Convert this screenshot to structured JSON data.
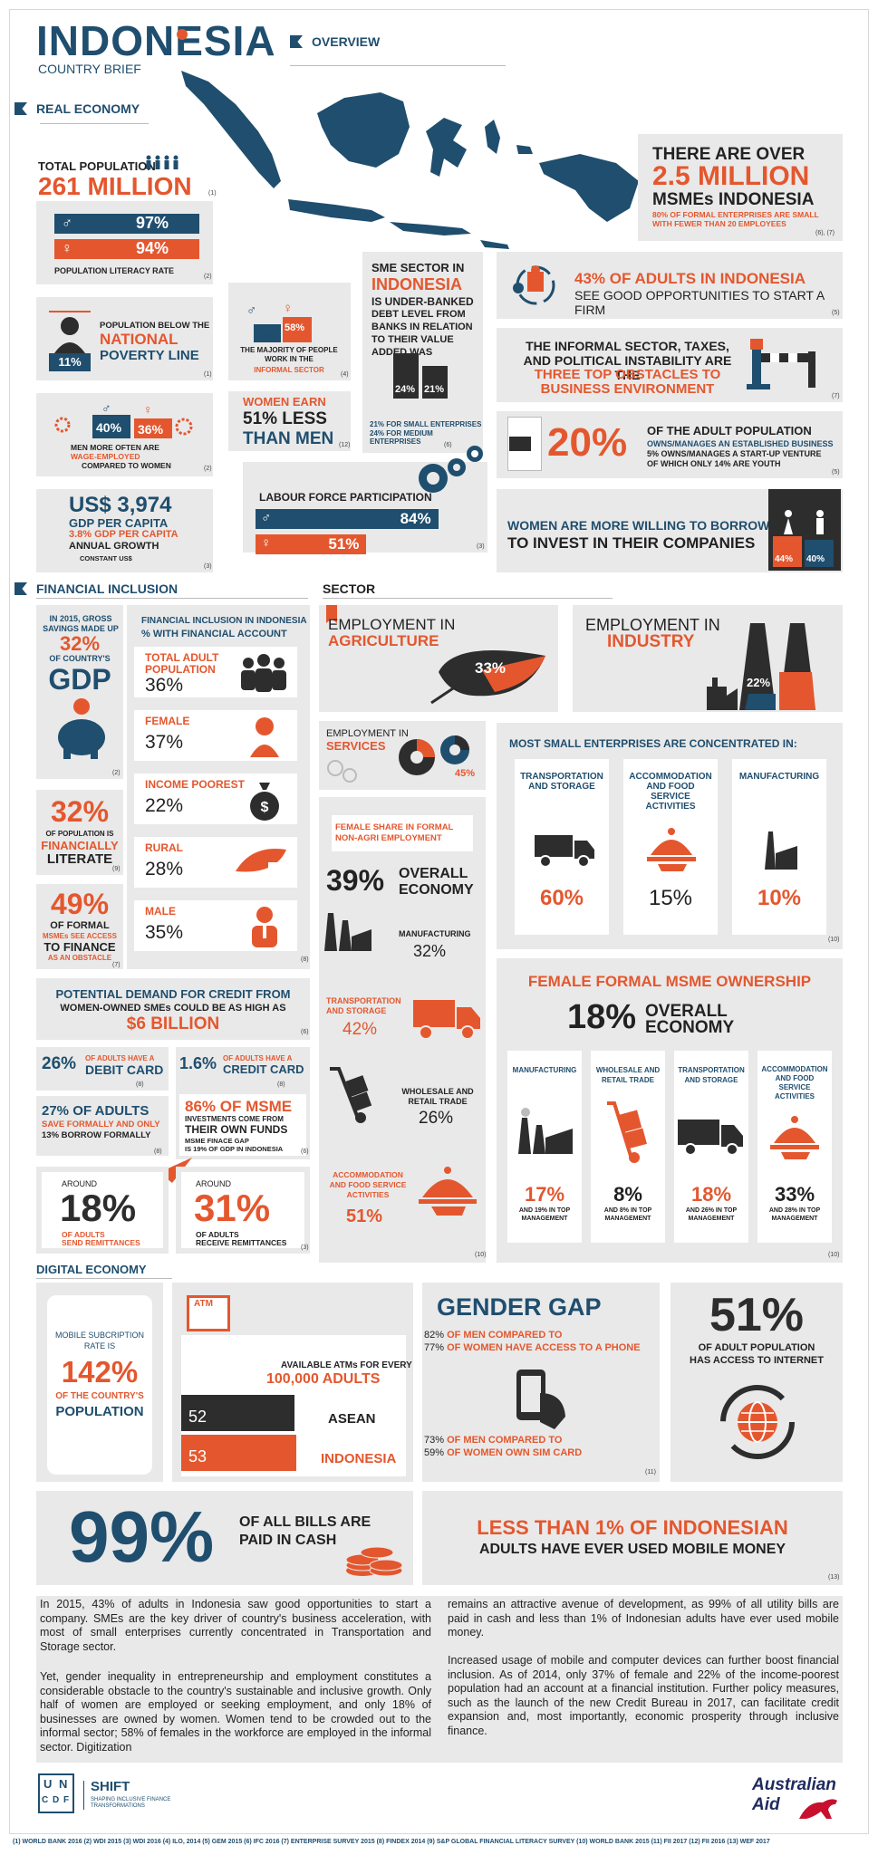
{
  "header": {
    "title": "INDONESIA",
    "subtitle": "COUNTRY BRIEF",
    "overview": "OVERVIEW",
    "real_economy": "REAL ECONOMY"
  },
  "population": {
    "label": "TOTAL POPULATION",
    "value": "261 MILLION",
    "ref": "(1)"
  },
  "literacy": {
    "male": "97%",
    "female": "94%",
    "label": "POPULATION LITERACY RATE",
    "ref": "(2)"
  },
  "poverty": {
    "text1": "POPULATION BELOW THE",
    "text2": "NATIONAL",
    "text3": "POVERTY LINE",
    "value": "11%",
    "ref": "(1)"
  },
  "informal": {
    "male": "51%",
    "female": "58%",
    "text": "THE MAJORITY OF PEOPLE WORK IN THE",
    "text2": "INFORMAL SECTOR",
    "ref": "(4)"
  },
  "wage": {
    "male": "40%",
    "female": "36%",
    "t1": "MEN MORE OFTEN ARE",
    "t2": "WAGE-EMPLOYED",
    "t3": "COMPARED TO WOMEN",
    "ref": "(2)"
  },
  "women_earn": {
    "t1": "WOMEN EARN",
    "t2": "51% LESS",
    "t3": "THAN MEN",
    "ref": "(12)"
  },
  "gdp": {
    "t1": "US$ 3,974",
    "t2": "GDP PER CAPITA",
    "t3": "3.8% GDP PER CAPITA",
    "t4": "ANNUAL GROWTH",
    "t5": "CONSTANT US$",
    "ref": "(3)"
  },
  "labour": {
    "label": "LABOUR FORCE PARTICIPATION",
    "male": "84%",
    "female": "51%",
    "male_pct": 84,
    "female_pct": 51,
    "ref": "(3)"
  },
  "sme": {
    "t1": "SME SECTOR IN",
    "t2": "INDONESIA",
    "t3": "IS UNDER-BANKED",
    "t4": "DEBT LEVEL FROM BANKS IN RELATION TO THEIR VALUE ADDED WAS",
    "v1": "24%",
    "v2": "21%",
    "n1": "21% FOR SMALL ENTERPRISES",
    "n2": "24% FOR MEDIUM ENTERPRISES",
    "ref": "(6)"
  },
  "msme": {
    "t1": "THERE ARE OVER",
    "t2": "2.5 MILLION",
    "t3": "MSMEs INDONESIA",
    "t4": "80% OF FORMAL ENTERPRISES ARE SMALL WITH FEWER THAN 20 EMPLOYEES",
    "ref": "(6), (7)"
  },
  "adults_firm": {
    "t1": "43% OF ADULTS IN INDONESIA",
    "t2": "SEE GOOD OPPORTUNITIES TO START A FIRM",
    "ref": "(5)"
  },
  "obstacles": {
    "t1": "THE INFORMAL SECTOR, TAXES, AND POLITICAL INSTABILITY ARE THE",
    "t2": "THREE TOP OBSTACLES TO BUSINESS ENVIRONMENT",
    "ref": "(7)"
  },
  "owners": {
    "v": "20%",
    "t1": "OF THE ADULT POPULATION",
    "t2": "OWNS/MANAGES AN ESTABLISHED BUSINESS",
    "t3": "5% OWNS/MANAGES A START-UP VENTURE OF WHICH ONLY 14% ARE YOUTH",
    "ref": "(5)"
  },
  "borrow": {
    "t1": "WOMEN ARE MORE WILLING TO BORROW",
    "t2": "TO INVEST IN THEIR COMPANIES",
    "f": "44%",
    "m": "40%"
  },
  "fin": {
    "head": "FINANCIAL INCLUSION",
    "savings_t1": "IN 2015, GROSS SAVINGS MADE UP",
    "savings_v": "32%",
    "savings_t2": "OF COUNTRY'S",
    "savings_t3": "GDP",
    "savings_ref": "(2)",
    "acc_title": "FINANCIAL INCLUSION IN INDONESIA",
    "acc_sub": "% WITH FINANCIAL ACCOUNT",
    "rows": [
      {
        "label": "TOTAL ADULT POPULATION",
        "value": "36%"
      },
      {
        "label": "FEMALE",
        "value": "37%"
      },
      {
        "label": "INCOME POOREST",
        "value": "22%"
      },
      {
        "label": "RURAL",
        "value": "28%"
      },
      {
        "label": "MALE",
        "value": "35%"
      }
    ],
    "acc_ref": "(8)",
    "lit_v": "32%",
    "lit_t1": "OF POPULATION IS",
    "lit_t2": "FINANCIALLY",
    "lit_t3": "LITERATE",
    "lit_ref": "(9)",
    "obs_v": "49%",
    "obs_t1": "OF FORMAL",
    "obs_t2": "MSMEs SEE ACCESS",
    "obs_t3": "TO FINANCE",
    "obs_t4": "AS AN OBSTACLE",
    "obs_ref": "(7)"
  },
  "credit": {
    "t1": "POTENTIAL DEMAND FOR CREDIT FROM",
    "t2": "WOMEN-OWNED SMEs COULD BE AS HIGH AS",
    "t3": "$6 BILLION",
    "ref": "(6)",
    "debit_v": "26%",
    "debit_t": "OF ADULTS HAVE A",
    "debit_t2": "DEBIT CARD",
    "debit_ref": "(8)",
    "cc_v": "1.6%",
    "cc_t": "OF ADULTS HAVE A",
    "cc_t2": "CREDIT CARD",
    "cc_ref": "(8)",
    "save_t1": "27% OF ADULTS",
    "save_t2": "SAVE FORMALLY AND ONLY",
    "save_t3": "13% BORROW FORMALLY",
    "save_ref": "(8)",
    "inv_t1": "86% OF MSME",
    "inv_t2": "INVESTMENTS COME FROM",
    "inv_t3": "THEIR OWN FUNDS",
    "inv_t4": "MSME FINACE GAP",
    "inv_t5": "IS 19% OF GDP IN INDONESIA",
    "inv_ref": "(6)",
    "send_a": "AROUND",
    "send_v": "18%",
    "send_t": "OF ADULTS",
    "send_t2": "SEND REMITTANCES",
    "rec_a": "AROUND",
    "rec_v": "31%",
    "rec_t": "OF ADULTS",
    "rec_t2": "RECEIVE REMITTANCES",
    "rem_ref": "(3)"
  },
  "sector": {
    "head": "SECTOR",
    "agri_t1": "EMPLOYMENT IN",
    "agri_t2": "AGRICULTURE",
    "agri_v": "33%",
    "ind_t1": "EMPLOYMENT IN",
    "ind_t2": "INDUSTRY",
    "ind_v": "22%",
    "serv_t1": "EMPLOYMENT IN",
    "serv_t2": "SERVICES",
    "serv_v": "45%"
  },
  "female_share": {
    "t1": "FEMALE SHARE IN FORMAL",
    "t2": "NON-AGRI EMPLOYMENT",
    "v": "39%",
    "v_t": "OVERALL",
    "v_t2": "ECONOMY",
    "items": [
      {
        "label": "MANUFACTURING",
        "value": "32%"
      },
      {
        "label": "TRANSPORTATION AND STORAGE",
        "value": "42%"
      },
      {
        "label": "WHOLESALE AND RETAIL TRADE",
        "value": "26%"
      },
      {
        "label": "ACCOMMODATION AND FOOD SERVICE ACTIVITIES",
        "value": "51%"
      }
    ],
    "ref": "(10)"
  },
  "concentrated": {
    "t": "MOST SMALL ENTERPRISES ARE CONCENTRATED IN:",
    "items": [
      {
        "label": "TRANSPORTATION AND STORAGE",
        "value": "60%"
      },
      {
        "label": "ACCOMMODATION AND FOOD SERVICE ACTIVITIES",
        "value": "15%"
      },
      {
        "label": "MANUFACTURING",
        "value": "10%"
      }
    ],
    "ref": "(10)"
  },
  "ownership": {
    "t": "FEMALE FORMAL MSME OWNERSHIP",
    "v": "18%",
    "v_t": "OVERALL",
    "v_t2": "ECONOMY",
    "items": [
      {
        "label": "MANUFACTURING",
        "value": "17%",
        "note": "AND 19% IN TOP MANAGEMENT"
      },
      {
        "label": "WHOLESALE AND RETAIL TRADE",
        "value": "8%",
        "note": "AND 8% IN TOP MANAGEMENT"
      },
      {
        "label": "TRANSPORTATION AND STORAGE",
        "value": "18%",
        "note": "AND 26% IN TOP MANAGEMENT"
      },
      {
        "label": "ACCOMMODATION AND FOOD SERVICE ACTIVITIES",
        "value": "33%",
        "note": "AND 28% IN TOP MANAGEMENT"
      }
    ],
    "ref": "(10)"
  },
  "digital": {
    "head": "DIGITAL ECONOMY",
    "mob_t1": "MOBILE SUBCRIPTION RATE IS",
    "mob_v": "142%",
    "mob_t2": "OF THE COUNTRY'S",
    "mob_t3": "POPULATION",
    "atm": "ATM",
    "atm_t1": "AVAILABLE ATMs FOR EVERY",
    "atm_t2": "100,000 ADULTS",
    "asean_v": "52",
    "asean": "ASEAN",
    "indo_v": "53",
    "indo": "INDONESIA",
    "gender_t": "GENDER GAP",
    "g1a": "82%",
    "g1b": "OF MEN COMPARED TO",
    "g1c": "77%",
    "g1d": "OF WOMEN HAVE ACCESS TO A PHONE",
    "g2a": "73%",
    "g2b": "OF MEN COMPARED TO",
    "g2c": "59%",
    "g2d": "OF WOMEN OWN SIM CARD",
    "g_ref": "(11)",
    "net_v": "51%",
    "net_t1": "OF ADULT POPULATION",
    "net_t2": "HAS ACCESS TO INTERNET",
    "cash_v": "99%",
    "cash_t1": "OF ALL BILLS ARE",
    "cash_t2": "PAID IN CASH",
    "mm_t1": "LESS THAN 1% OF INDONESIAN",
    "mm_t2": "ADULTS HAVE EVER USED MOBILE MONEY",
    "mm_ref": "(13)"
  },
  "text": {
    "p1": "In 2015, 43% of adults in Indonesia saw good opportunities to start a company. SMEs are the key driver of country's business acceleration, with most of small enterprises currently concentrated in Transportation and Storage sector.",
    "p2": "Yet, gender inequality in entrepreneurship and employment constitutes a considerable obstacle to the country's sustainable and inclusive growth. Only half of women are employed or seeking employment, and only 18% of businesses are owned by women. Women tend to be crowded out to the informal sector; 58% of females in the workforce are employed in the informal sector. Digitization",
    "p3": "remains an attractive avenue of development, as 99% of all utility bills are paid in cash and less than 1% of Indonesian adults have ever used mobile money.",
    "p4": "Increased usage of mobile and computer devices can further boost financial inclusion. As of 2014, only 37% of female and 22% of the income-poorest population had an account at a financial institution. Further policy measures, such as the launch of the new Credit Bureau in 2017, can facilitate credit expansion and, most importantly, economic prosperity through inclusive finance."
  },
  "footer": {
    "un1": "U N",
    "un2": "C D F",
    "shift": "SHIFT",
    "shift_sub": "SHAPING INCLUSIVE FINANCE TRANSFORMATIONS",
    "aid1": "Australian",
    "aid2": "Aid",
    "sources": "(1) WORLD BANK 2016  (2) WDI 2015  (3) WDI 2016  (4) ILO, 2014  (5) GEM 2015  (6) IFC 2016  (7) ENTERPRISE SURVEY 2015  (8) FINDEX 2014  (9) S&P GLOBAL FINANCIAL LITERACY SURVEY  (10) WORLD BANK 2015  (11) FII 2017  (12) FII 2016  (13) WEF 2017"
  },
  "colors": {
    "blue": "#1f4e6e",
    "orange": "#e4572e",
    "gray": "#e9e9e9",
    "dark": "#2d2d2d"
  }
}
